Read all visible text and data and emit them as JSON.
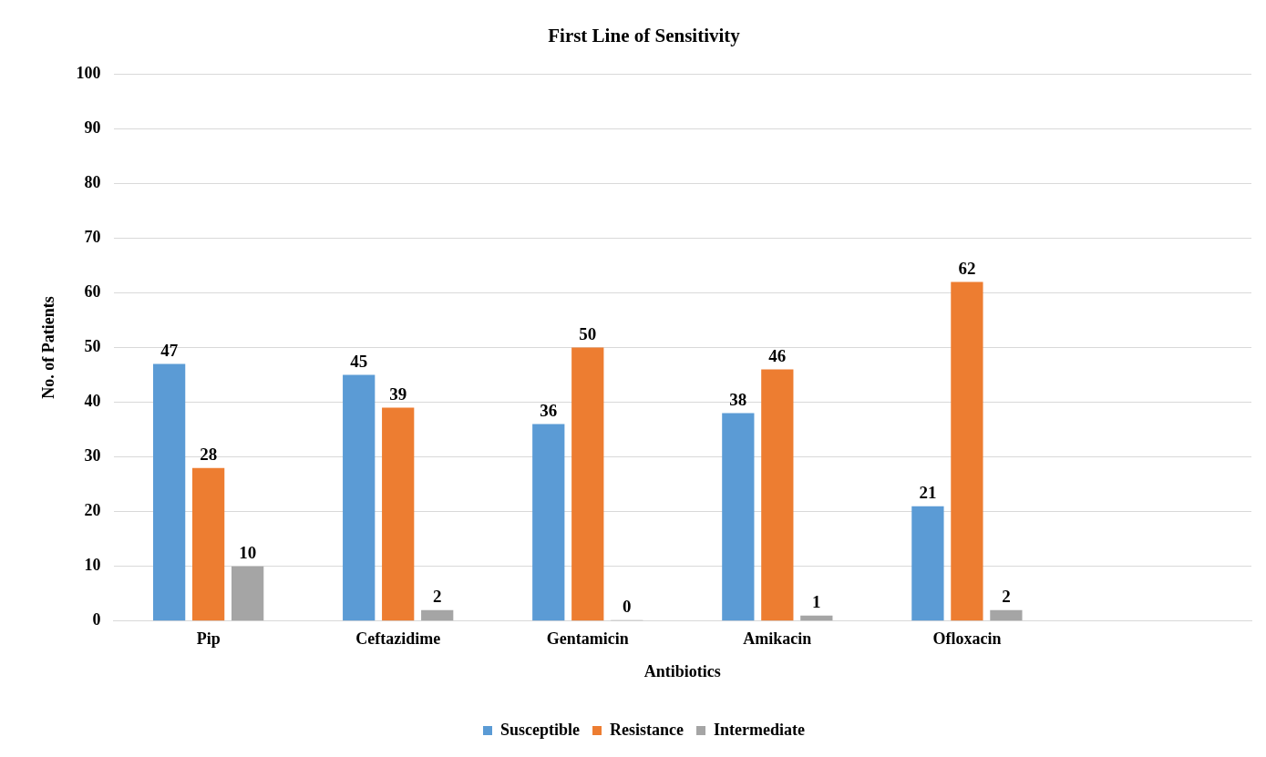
{
  "chart_data": {
    "type": "bar",
    "title": "First Line of Sensitivity",
    "xlabel": "Antibiotics",
    "ylabel": "No. of Patients",
    "categories": [
      "Pip",
      "Ceftazidime",
      "Gentamicin",
      "Amikacin",
      "Ofloxacin",
      null
    ],
    "series": [
      {
        "name": "Susceptible",
        "color": "#5b9bd5",
        "values": [
          47,
          45,
          36,
          38,
          21,
          null
        ]
      },
      {
        "name": "Resistance",
        "color": "#ed7d31",
        "values": [
          28,
          39,
          50,
          46,
          62,
          null
        ]
      },
      {
        "name": "Intermediate",
        "color": "#a5a5a5",
        "values": [
          10,
          2,
          0,
          1,
          2,
          null
        ]
      }
    ],
    "ylim": [
      0,
      100
    ],
    "yticks": [
      0,
      10,
      20,
      30,
      40,
      50,
      60,
      70,
      80,
      90,
      100
    ],
    "grid": "y",
    "legend": "bottom",
    "data_labels": true
  }
}
